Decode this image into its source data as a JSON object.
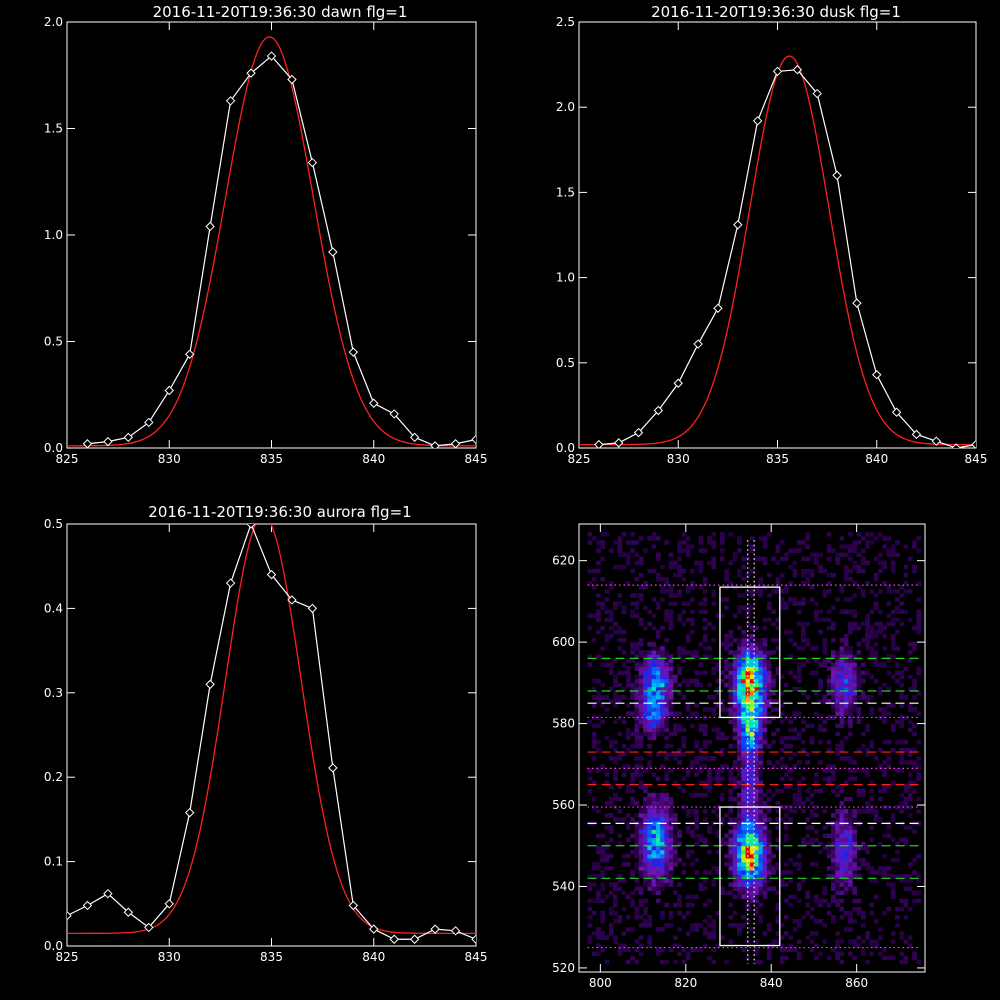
{
  "chart_data": [
    {
      "id": "dawn",
      "type": "line",
      "title": "2016-11-20T19:36:30 dawn flg=1",
      "xlim": [
        825,
        845
      ],
      "ylim": [
        0,
        2.0
      ],
      "xticks": [
        "825",
        "830",
        "835",
        "840",
        "845"
      ],
      "xtick_values": [
        825,
        830,
        835,
        840,
        845
      ],
      "yticks": [
        "0.0",
        "0.5",
        "1.0",
        "1.5",
        "2.0"
      ],
      "ytick_values": [
        0,
        0.5,
        1.0,
        1.5,
        2.0
      ],
      "grid": false,
      "series": [
        {
          "kind": "measured",
          "color": "#ffffff",
          "marker": "diamond",
          "x": [
            826,
            827,
            828,
            829,
            830,
            831,
            832,
            833,
            834,
            835,
            836,
            837,
            838,
            839,
            840,
            841,
            842,
            843,
            844,
            845
          ],
          "y": [
            0.02,
            0.03,
            0.05,
            0.12,
            0.27,
            0.44,
            1.04,
            1.63,
            1.76,
            1.84,
            1.73,
            1.34,
            0.92,
            0.45,
            0.21,
            0.16,
            0.05,
            0.01,
            0.02,
            0.04
          ]
        },
        {
          "kind": "fit",
          "color": "#ff2020",
          "model": "gaussian",
          "amplitude": 1.92,
          "center": 834.9,
          "sigma": 2.15,
          "offset": 0.01
        }
      ]
    },
    {
      "id": "dusk",
      "type": "line",
      "title": "2016-11-20T19:36:30 dusk flg=1",
      "xlim": [
        825,
        845
      ],
      "ylim": [
        0,
        2.5
      ],
      "xticks": [
        "825",
        "830",
        "835",
        "840",
        "845"
      ],
      "xtick_values": [
        825,
        830,
        835,
        840,
        845
      ],
      "yticks": [
        "0.0",
        "0.5",
        "1.0",
        "1.5",
        "2.0",
        "2.5"
      ],
      "ytick_values": [
        0,
        0.5,
        1.0,
        1.5,
        2.0,
        2.5
      ],
      "grid": false,
      "series": [
        {
          "kind": "measured",
          "color": "#ffffff",
          "marker": "diamond",
          "x": [
            826,
            827,
            828,
            829,
            830,
            831,
            832,
            833,
            834,
            835,
            836,
            837,
            838,
            839,
            840,
            841,
            842,
            843,
            844,
            845
          ],
          "y": [
            0.02,
            0.03,
            0.09,
            0.22,
            0.38,
            0.61,
            0.82,
            1.31,
            1.92,
            2.21,
            2.22,
            2.08,
            1.6,
            0.85,
            0.43,
            0.21,
            0.08,
            0.04,
            0.0,
            0.02
          ]
        },
        {
          "kind": "fit",
          "color": "#ff2020",
          "model": "gaussian",
          "amplitude": 2.28,
          "center": 835.6,
          "sigma": 2.0,
          "offset": 0.02
        }
      ]
    },
    {
      "id": "aurora",
      "type": "line",
      "title": "2016-11-20T19:36:30 aurora flg=1",
      "xlim": [
        825,
        845
      ],
      "ylim": [
        0,
        0.5
      ],
      "xticks": [
        "825",
        "830",
        "835",
        "840",
        "845"
      ],
      "xtick_values": [
        825,
        830,
        835,
        840,
        845
      ],
      "yticks": [
        "0.0",
        "0.1",
        "0.2",
        "0.3",
        "0.4",
        "0.5"
      ],
      "ytick_values": [
        0,
        0.1,
        0.2,
        0.3,
        0.4,
        0.5
      ],
      "grid": false,
      "series": [
        {
          "kind": "measured",
          "color": "#ffffff",
          "marker": "diamond",
          "x": [
            825,
            826,
            827,
            828,
            829,
            830,
            831,
            832,
            833,
            834,
            835,
            836,
            837,
            838,
            839,
            840,
            841,
            842,
            843,
            844,
            845
          ],
          "y": [
            0.036,
            0.048,
            0.062,
            0.04,
            0.022,
            0.05,
            0.158,
            0.31,
            0.43,
            0.5,
            0.44,
            0.41,
            0.4,
            0.211,
            0.048,
            0.02,
            0.008,
            0.008,
            0.02,
            0.018,
            0.008
          ]
        },
        {
          "kind": "fit",
          "color": "#ff2020",
          "model": "gaussian",
          "amplitude": 0.495,
          "center": 834.6,
          "sigma": 1.85,
          "offset": 0.015
        }
      ]
    },
    {
      "id": "image",
      "type": "heatmap",
      "title": "",
      "xlim": [
        795,
        876
      ],
      "ylim": [
        519,
        629
      ],
      "xticks": [
        "800",
        "820",
        "840",
        "860"
      ],
      "xtick_values": [
        800,
        820,
        840,
        860
      ],
      "yticks": [
        "520",
        "540",
        "560",
        "580",
        "600",
        "620"
      ],
      "ytick_values": [
        520,
        540,
        560,
        580,
        600,
        620
      ],
      "colormap": "rainbow",
      "emission_blobs": [
        {
          "x": 813,
          "y": 590,
          "sx": 2.2,
          "sy": 4.5,
          "peak": 0.55
        },
        {
          "x": 812,
          "y": 582,
          "sx": 2.0,
          "sy": 3.0,
          "peak": 0.35
        },
        {
          "x": 813,
          "y": 551,
          "sx": 2.4,
          "sy": 6.0,
          "peak": 0.55
        },
        {
          "x": 835,
          "y": 590,
          "sx": 2.3,
          "sy": 5.0,
          "peak": 1.0
        },
        {
          "x": 835,
          "y": 579,
          "sx": 1.8,
          "sy": 4.0,
          "peak": 0.55
        },
        {
          "x": 835,
          "y": 548,
          "sx": 2.3,
          "sy": 5.0,
          "peak": 0.95
        },
        {
          "x": 835,
          "y": 566,
          "sx": 1.5,
          "sy": 8.0,
          "peak": 0.28
        },
        {
          "x": 857,
          "y": 590,
          "sx": 2.0,
          "sy": 5.0,
          "peak": 0.35
        },
        {
          "x": 857,
          "y": 549,
          "sx": 2.0,
          "sy": 6.0,
          "peak": 0.3
        }
      ],
      "boxes": [
        {
          "x0": 828,
          "x1": 842,
          "y0": 581.5,
          "y1": 613.5,
          "color": "#ffffff"
        },
        {
          "x0": 828,
          "x1": 842,
          "y0": 525.5,
          "y1": 559.5,
          "color": "#ffffff"
        }
      ],
      "vertical_lines": [
        {
          "x": 834.5,
          "color": "#ffffff",
          "style": "dotted"
        },
        {
          "x": 836.0,
          "color": "#ffffff",
          "style": "dotted"
        }
      ],
      "horizontal_lines": [
        {
          "y": 614,
          "color": "#ff40ff",
          "style": "dotted"
        },
        {
          "y": 596,
          "color": "#20d020",
          "style": "dashed"
        },
        {
          "y": 588,
          "color": "#20d020",
          "style": "dashed"
        },
        {
          "y": 585,
          "color": "#ffffff",
          "style": "dashed"
        },
        {
          "y": 581.5,
          "color": "#ff40ff",
          "style": "dotted"
        },
        {
          "y": 573,
          "color": "#ff2020",
          "style": "dashed"
        },
        {
          "y": 569,
          "color": "#ff40ff",
          "style": "dotted"
        },
        {
          "y": 565,
          "color": "#ff2020",
          "style": "dashed"
        },
        {
          "y": 559.5,
          "color": "#ff40ff",
          "style": "dotted"
        },
        {
          "y": 555.5,
          "color": "#ffffff",
          "style": "dashed"
        },
        {
          "y": 550,
          "color": "#20d020",
          "style": "dashed"
        },
        {
          "y": 542,
          "color": "#20d020",
          "style": "dashed"
        },
        {
          "y": 525,
          "color": "#ff40ff",
          "style": "dotted"
        }
      ]
    }
  ]
}
